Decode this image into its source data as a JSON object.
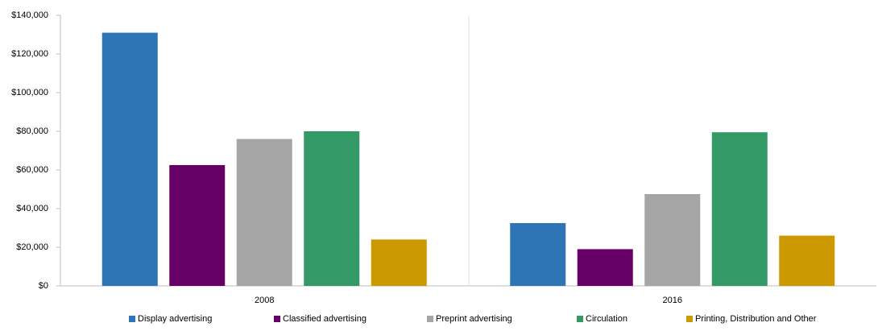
{
  "chart_data": {
    "type": "bar",
    "categories": [
      "2008",
      "2016"
    ],
    "series": [
      {
        "name": "Display advertising",
        "color": "#2e75b6",
        "values": [
          131000,
          32500
        ]
      },
      {
        "name": "Classified advertising",
        "color": "#660066",
        "values": [
          62500,
          19000
        ]
      },
      {
        "name": "Preprint advertising",
        "color": "#a5a5a5",
        "values": [
          76000,
          47500
        ]
      },
      {
        "name": "Circulation",
        "color": "#339966",
        "values": [
          80000,
          79500
        ]
      },
      {
        "name": "Printing, Distribution and Other",
        "color": "#cc9900",
        "values": [
          24000,
          26000
        ]
      }
    ],
    "ylim": [
      0,
      140000
    ],
    "yticks": [
      {
        "value": 0,
        "label": "$0"
      },
      {
        "value": 20000,
        "label": "$20,000"
      },
      {
        "value": 40000,
        "label": "$40,000"
      },
      {
        "value": 60000,
        "label": "$60,000"
      },
      {
        "value": 80000,
        "label": "$80,000"
      },
      {
        "value": 100000,
        "label": "$100,000"
      },
      {
        "value": 120000,
        "label": "$120,000"
      },
      {
        "value": 140000,
        "label": "$140,000"
      }
    ],
    "grid": false,
    "legend": "bottom"
  }
}
